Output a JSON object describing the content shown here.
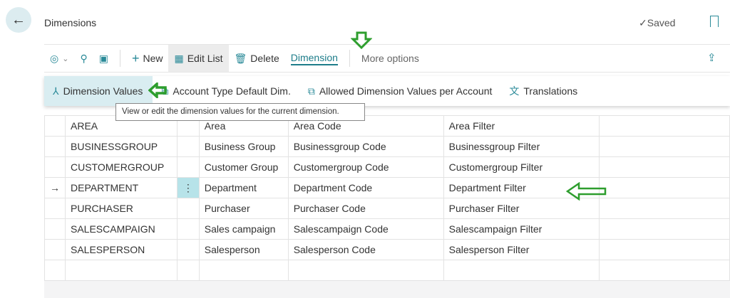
{
  "header": {
    "title": "Dimensions",
    "saved": "Saved",
    "back_icon": "arrow-left-icon",
    "bookmark_icon": "bookmark-icon"
  },
  "toolbar": {
    "new": "New",
    "edit_list": "Edit List",
    "delete": "Delete",
    "dimension": "Dimension",
    "more_options": "More options"
  },
  "actions": {
    "dimension_values": "Dimension Values",
    "account_type_default_dim": "Account Type Default Dim.",
    "allowed_values": "Allowed Dimension Values per Account",
    "translations": "Translations"
  },
  "tooltip": "View or edit the dimension values for the current dimension.",
  "rows": [
    {
      "code": "AREA",
      "name": "Area",
      "caption": "Area Code",
      "filter": "Area Filter"
    },
    {
      "code": "BUSINESSGROUP",
      "name": "Business Group",
      "caption": "Businessgroup Code",
      "filter": "Businessgroup Filter"
    },
    {
      "code": "CUSTOMERGROUP",
      "name": "Customer Group",
      "caption": "Customergroup Code",
      "filter": "Customergroup Filter"
    },
    {
      "code": "DEPARTMENT",
      "name": "Department",
      "caption": "Department Code",
      "filter": "Department Filter"
    },
    {
      "code": "PURCHASER",
      "name": "Purchaser",
      "caption": "Purchaser Code",
      "filter": "Purchaser Filter"
    },
    {
      "code": "SALESCAMPAIGN",
      "name": "Sales campaign",
      "caption": "Salescampaign Code",
      "filter": "Salescampaign Filter"
    },
    {
      "code": "SALESPERSON",
      "name": "Salesperson",
      "caption": "Salesperson Code",
      "filter": "Salesperson Filter"
    }
  ],
  "selected_row": 3,
  "colors": {
    "accent": "#1d7d8a",
    "annotation_arrow": "#2e9e2e",
    "selected": "#b7e3e9"
  }
}
